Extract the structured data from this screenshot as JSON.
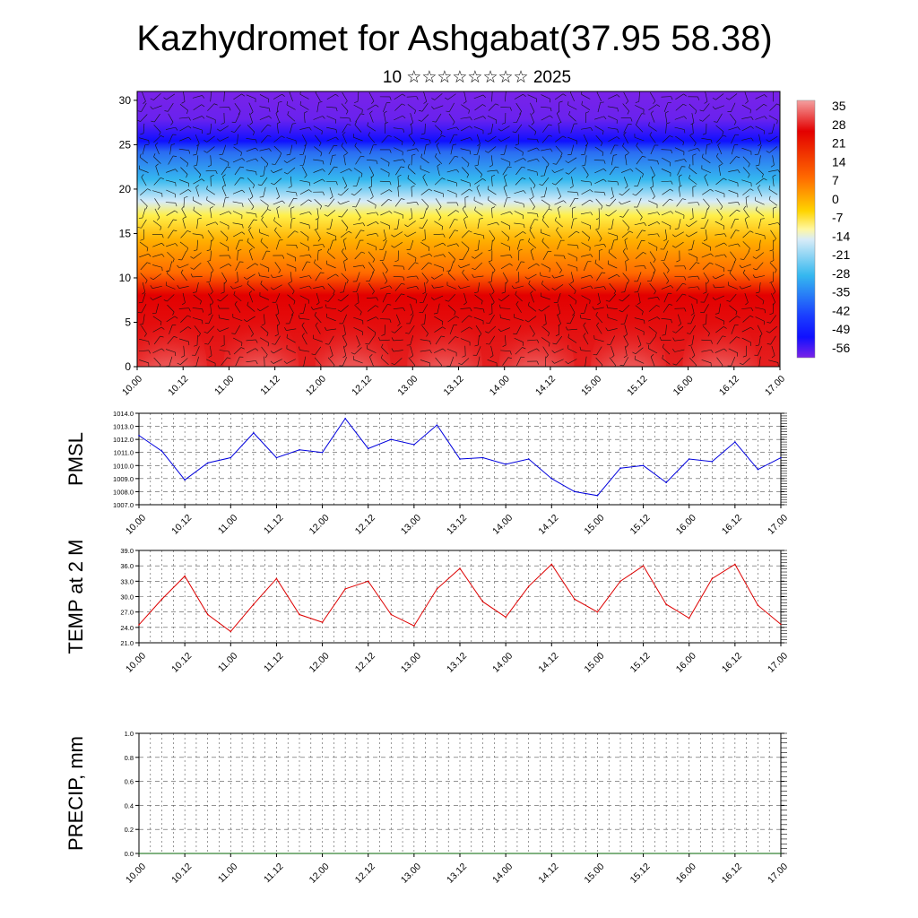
{
  "title": "Kazhydromet for Ashgabat(37.95 58.38)",
  "subtitle": "10 ☆☆☆☆☆☆☆☆ 2025",
  "time_ticks": [
    "10.00",
    "10.12",
    "11.00",
    "11.12",
    "12.00",
    "12.12",
    "13.00",
    "13.12",
    "14.00",
    "14.12",
    "15.00",
    "15.12",
    "16.00",
    "16.12",
    "17.00"
  ],
  "chart_data": [
    {
      "type": "heatmap",
      "name": "temperature-wind-cross-section",
      "y_ticks": [
        0,
        5,
        10,
        15,
        20,
        25,
        30
      ],
      "ylim": [
        0,
        31
      ],
      "colorbar_labels": [
        "35",
        "28",
        "21",
        "14",
        "7",
        "0",
        "-7",
        "-14",
        "-21",
        "-28",
        "-35",
        "-42",
        "-49",
        "-56"
      ],
      "colors": {
        "warm": "#f08a8a",
        "red": "#e30000",
        "orange": "#ff8c00",
        "yellow": "#fff04a",
        "cyan": "#35b8ef",
        "blue": "#1010ff",
        "violet": "#7a23e8"
      }
    },
    {
      "type": "line",
      "ylabel": "PMSL",
      "ylim": [
        1007.0,
        1014.0
      ],
      "y_ticks": [
        "1007.0",
        "1008.0",
        "1009.0",
        "1010.0",
        "1011.0",
        "1012.0",
        "1013.0",
        "1014.0"
      ],
      "color": "#0000dd",
      "x_hours": [
        0,
        6,
        12,
        18,
        24,
        30,
        36,
        42,
        48,
        54,
        60,
        66,
        72,
        78,
        84,
        90,
        96,
        102,
        108,
        114,
        120,
        126,
        132,
        138,
        144,
        150,
        156,
        162,
        168
      ],
      "values": [
        1012.3,
        1011.1,
        1008.9,
        1010.2,
        1010.6,
        1012.5,
        1010.6,
        1011.2,
        1011.0,
        1013.6,
        1011.3,
        1012.0,
        1011.6,
        1013.1,
        1010.5,
        1010.6,
        1010.1,
        1010.5,
        1009.0,
        1008.0,
        1007.7,
        1009.8,
        1010.0,
        1008.7,
        1010.5,
        1010.3,
        1011.8,
        1009.7,
        1010.6
      ]
    },
    {
      "type": "line",
      "ylabel": "TEMP at 2 M",
      "ylim": [
        21.0,
        39.0
      ],
      "y_ticks": [
        "21.0",
        "24.0",
        "27.0",
        "30.0",
        "33.0",
        "36.0",
        "39.0"
      ],
      "color": "#dd0000",
      "x_hours": [
        0,
        6,
        12,
        18,
        24,
        30,
        36,
        42,
        48,
        54,
        60,
        66,
        72,
        78,
        84,
        90,
        96,
        102,
        108,
        114,
        120,
        126,
        132,
        138,
        144,
        150,
        156,
        162,
        168
      ],
      "values": [
        24.5,
        29.5,
        34.0,
        26.5,
        23.2,
        28.5,
        33.5,
        26.5,
        25.0,
        31.5,
        33.0,
        26.5,
        24.3,
        31.5,
        35.5,
        29.0,
        26.0,
        32.0,
        36.3,
        29.5,
        27.0,
        33.0,
        36.0,
        28.5,
        25.8,
        33.5,
        36.3,
        28.3,
        24.6
      ]
    },
    {
      "type": "line",
      "ylabel": "PRECIP, mm",
      "ylim": [
        0.0,
        1.0
      ],
      "y_ticks": [
        "0.0",
        "0.2",
        "0.4",
        "0.6",
        "0.8",
        "1.0"
      ],
      "color": "#006400",
      "x_hours": [
        0,
        168
      ],
      "values": [
        0,
        0
      ]
    }
  ]
}
